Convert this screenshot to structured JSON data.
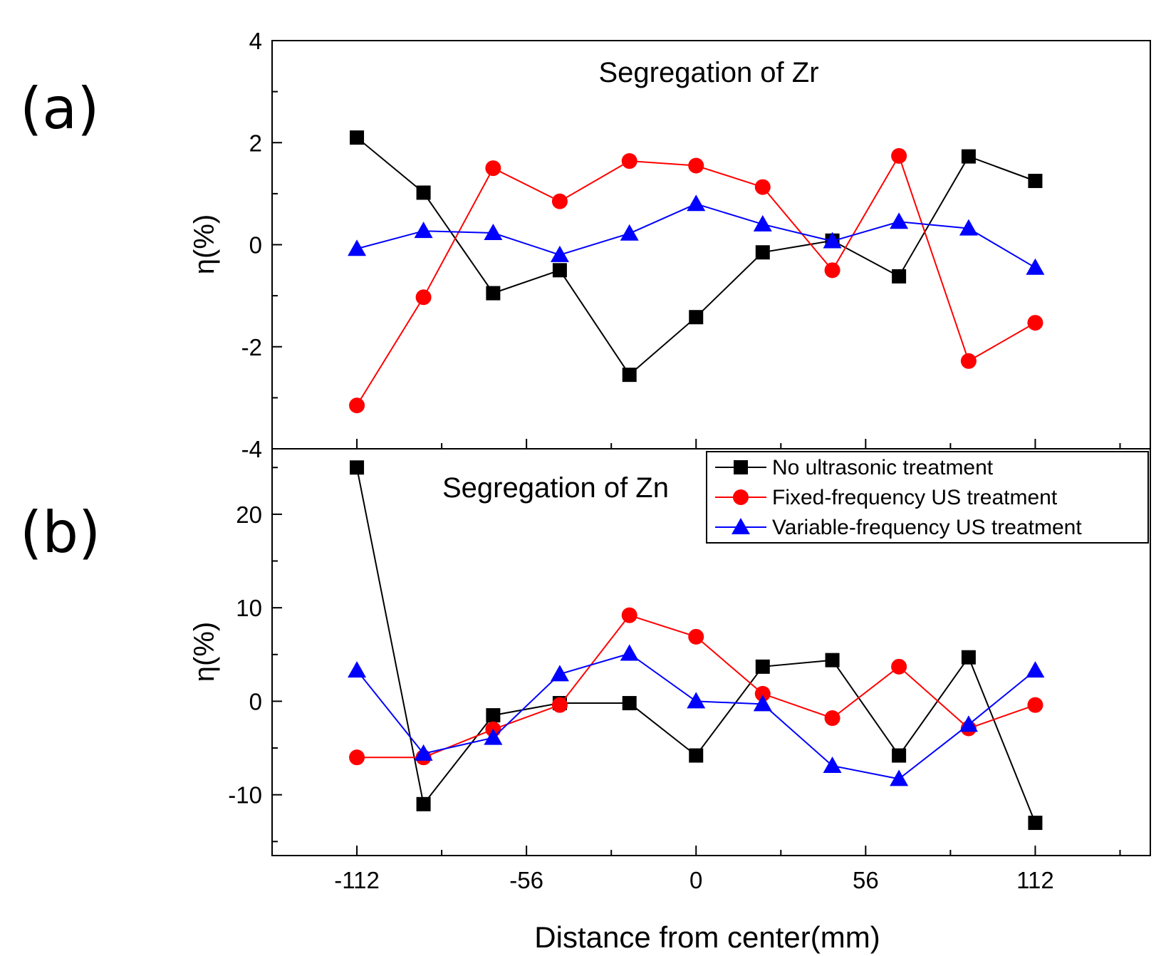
{
  "panel_labels": [
    "(a)",
    "(b)"
  ],
  "chart_data": [
    {
      "type": "line",
      "title": "Segregation of Zr",
      "xlabel": "Distance from center(mm)",
      "ylabel": "η(%)",
      "x": [
        -112,
        -90,
        -67,
        -45,
        -22,
        0,
        22,
        45,
        67,
        90,
        112
      ],
      "xlim": [
        -140,
        150
      ],
      "ylim": [
        -4,
        4
      ],
      "yticks": [
        -4,
        -2,
        0,
        2,
        4
      ],
      "grid": false,
      "series": [
        {
          "name": "No ultrasonic treatment",
          "color": "#000000",
          "marker": "square",
          "values": [
            2.1,
            1.02,
            -0.95,
            -0.5,
            -2.55,
            -1.42,
            -0.15,
            0.08,
            -0.62,
            1.73,
            1.25
          ]
        },
        {
          "name": "Fixed-frequency US treatment",
          "color": "#ff0000",
          "marker": "circle",
          "values": [
            -3.15,
            -1.03,
            1.5,
            0.85,
            1.64,
            1.55,
            1.13,
            -0.5,
            1.74,
            -2.28,
            -1.53
          ]
        },
        {
          "name": "Variable-frequency US treatment",
          "color": "#0000ff",
          "marker": "triangle",
          "values": [
            -0.08,
            0.27,
            0.23,
            -0.2,
            0.22,
            0.8,
            0.4,
            0.07,
            0.45,
            0.32,
            -0.45
          ]
        }
      ]
    },
    {
      "type": "line",
      "title": "Segregation of Zn",
      "xlabel": "Distance from center(mm)",
      "ylabel": "η(%)",
      "x": [
        -112,
        -90,
        -67,
        -45,
        -22,
        0,
        22,
        45,
        67,
        90,
        112
      ],
      "xlim": [
        -140,
        150
      ],
      "xticks": [
        -112,
        -56,
        0,
        56,
        112
      ],
      "ylim": [
        -16.5,
        27
      ],
      "yticks": [
        -10,
        0,
        10,
        20
      ],
      "grid": false,
      "legend": "top-right",
      "series": [
        {
          "name": "No ultrasonic treatment",
          "color": "#000000",
          "marker": "square",
          "values": [
            25,
            -11,
            -1.5,
            -0.2,
            -0.2,
            -5.8,
            3.7,
            4.4,
            -5.8,
            4.7,
            -13
          ]
        },
        {
          "name": "Fixed-frequency US treatment",
          "color": "#ff0000",
          "marker": "circle",
          "values": [
            -6,
            -6,
            -3,
            -0.4,
            9.2,
            6.9,
            0.8,
            -1.8,
            3.7,
            -2.9,
            -0.4
          ]
        },
        {
          "name": "Variable-frequency US treatment",
          "color": "#0000ff",
          "marker": "triangle",
          "values": [
            3.3,
            -5.6,
            -3.9,
            2.9,
            5.1,
            0,
            -0.3,
            -6.9,
            -8.3,
            -2.5,
            3.3
          ]
        }
      ]
    }
  ]
}
